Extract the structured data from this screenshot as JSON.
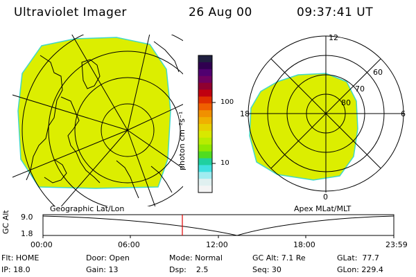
{
  "header": {
    "instrument": "Ultraviolet Imager",
    "date": "26 Aug 00",
    "time": "09:37:41 UT"
  },
  "geo_panel": {
    "label": "Geographic Lat/Lon"
  },
  "apex_panel": {
    "label": "Apex MLat/MLT",
    "mlt_labels": [
      "12",
      "18",
      "6",
      "0"
    ],
    "lat_labels": [
      "60",
      "70",
      "80"
    ]
  },
  "color_scale": {
    "unit_label": "photon cm⁻²s⁻¹",
    "tick_labels": [
      "100",
      "10"
    ],
    "colors": [
      "#202040",
      "#300050",
      "#500070",
      "#700060",
      "#900030",
      "#c00010",
      "#e03000",
      "#f06000",
      "#f09000",
      "#f0b000",
      "#e8d000",
      "#d8e800",
      "#b8ec00",
      "#90e800",
      "#50dc20",
      "#20d0a0",
      "#40e0e0",
      "#a0ecf0",
      "#e0f0f0",
      "#f4f4f4"
    ]
  },
  "altitude_plot": {
    "y_label": "GC Alt",
    "y_ticks": [
      "9.0",
      "1.8"
    ],
    "x_ticks": [
      "00:00",
      "06:00",
      "12:00",
      "18:00",
      "23:59"
    ]
  },
  "info": {
    "row1": {
      "flt": "Flt: HOME",
      "door": "Door: Open",
      "mode": "Mode: Normal",
      "gc_alt": "GC Alt: 7.1 Re",
      "glat": "GLat:  77.7"
    },
    "row2": {
      "ip": "IP: 18.0",
      "gain": "Gain: 13",
      "dsp": "Dsp:    2.5",
      "seq": "Seq: 30",
      "glon": "GLon: 229.4"
    }
  },
  "colors": {
    "aurora_fill": "#dcee00",
    "aurora_edge": "#40d8c8",
    "marker": "#e00000"
  }
}
